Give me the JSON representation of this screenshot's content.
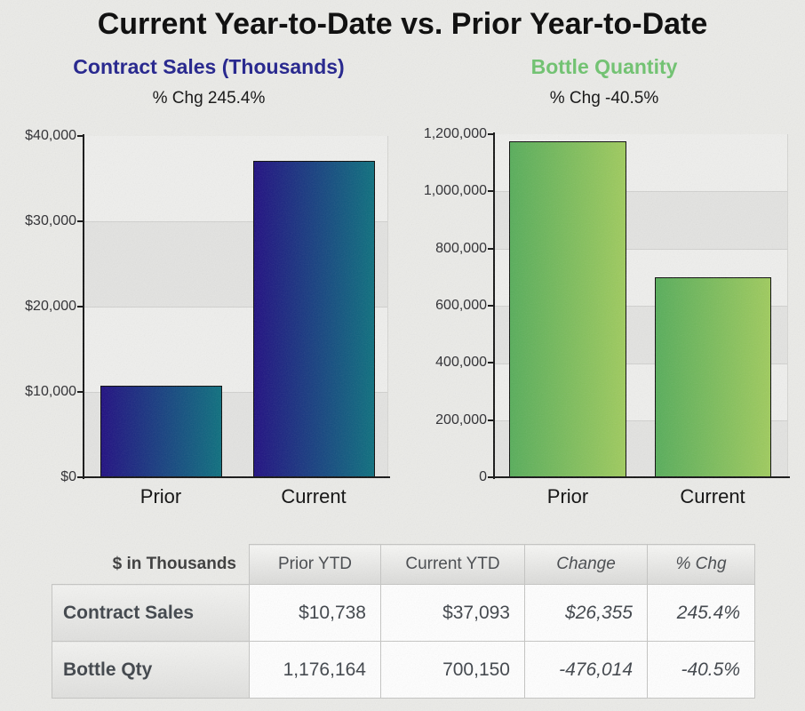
{
  "page": {
    "title": "Current Year-to-Date vs. Prior Year-to-Date"
  },
  "colors": {
    "contract_accent": "#20208c",
    "bottle_accent": "#6ec36e",
    "negative_value": "#8b1616",
    "bar_blue_gradient": [
      "#1f0e81",
      "#0c6f7e"
    ],
    "bar_green_gradient": [
      "#57ad5a",
      "#9fcb5d"
    ]
  },
  "chart_data": [
    {
      "type": "bar",
      "title": "Contract Sales (Thousands)",
      "subtitle": "% Chg 245.4%",
      "categories": [
        "Prior",
        "Current"
      ],
      "values": [
        10738,
        37093
      ],
      "ylim": [
        0,
        40000
      ],
      "y_tick_labels": [
        "$40,000",
        "$30,000",
        "$20,000",
        "$10,000",
        "$0"
      ],
      "xlabel": "",
      "ylabel": "",
      "grid": "horizontal gridlines with alternating shaded bands",
      "legend": "none"
    },
    {
      "type": "bar",
      "title": "Bottle Quantity",
      "subtitle": "% Chg -40.5%",
      "categories": [
        "Prior",
        "Current"
      ],
      "values": [
        1176164,
        700150
      ],
      "ylim": [
        0,
        1200000
      ],
      "y_tick_labels": [
        "1,200,000",
        "1,000,000",
        "800,000",
        "600,000",
        "400,000",
        "200,000",
        "0"
      ],
      "xlabel": "",
      "ylabel": "",
      "grid": "horizontal gridlines with alternating shaded bands",
      "legend": "none"
    }
  ],
  "table": {
    "corner_label": "$ in Thousands",
    "headers": [
      "Prior YTD",
      "Current YTD",
      "Change",
      "% Chg"
    ],
    "rows": [
      {
        "label": "Contract Sales",
        "values": [
          "$10,738",
          "$37,093",
          "$26,355",
          "245.4%"
        ]
      },
      {
        "label": "Bottle Qty",
        "values": [
          "1,176,164",
          "700,150",
          "-476,014",
          "-40.5%"
        ]
      }
    ]
  }
}
